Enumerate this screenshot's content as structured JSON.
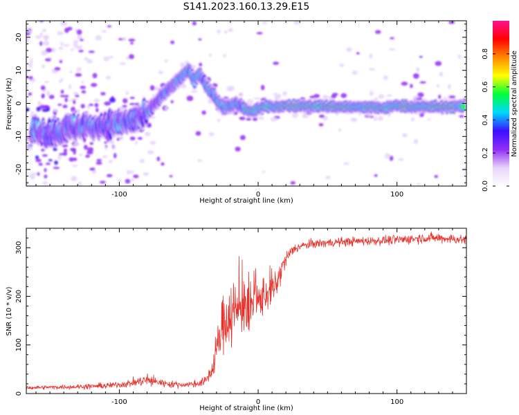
{
  "title": "S141.2023.160.13.29.E15",
  "chart_data": [
    {
      "type": "heatmap",
      "xlabel": "Height of straight line (km)",
      "ylabel": "Frequency (Hz)",
      "xlim": [
        -167,
        150
      ],
      "ylim": [
        -25,
        25
      ],
      "xticks": [
        -100,
        0,
        100
      ],
      "yticks": [
        -20,
        -10,
        0,
        10,
        20
      ],
      "grid": false,
      "ridge": {
        "x": [
          -163,
          -150,
          -140,
          -130,
          -120,
          -110,
          -100,
          -90,
          -82,
          -76,
          -70,
          -65,
          -60,
          -55,
          -50,
          -46,
          -42,
          -38,
          -35,
          -31,
          -28,
          -24,
          -20,
          -16,
          -12,
          -8,
          -4,
          0,
          4,
          8,
          12,
          20,
          40,
          60,
          80,
          88,
          92,
          96,
          100,
          110,
          130,
          148
        ],
        "y": [
          -8,
          -9,
          -8,
          -7,
          -7,
          -6.5,
          -6,
          -5,
          -4,
          -1,
          2,
          4,
          6,
          8,
          10,
          7,
          9,
          6,
          4,
          2,
          0,
          -1,
          -1,
          0,
          -1,
          -2,
          -2.5,
          -1.5,
          -1,
          -1,
          -1,
          -0.7,
          -0.8,
          -1,
          -1.2,
          -1.3,
          -1.5,
          -1,
          -0.5,
          -1,
          -1,
          -1
        ]
      },
      "colorbar": {
        "label": "Normalized spectral amplitude",
        "range": [
          0,
          1
        ],
        "ticks": [
          "0.0",
          "0.2",
          "0.4",
          "0.6",
          "0.8"
        ],
        "colors": [
          "#ffffff",
          "#e8d4fb",
          "#8f2ef5",
          "#3c10ff",
          "#00d8ff",
          "#00ff3a",
          "#ffff00",
          "#ff8a00",
          "#ff0000",
          "#ff1090"
        ]
      }
    },
    {
      "type": "line",
      "xlabel": "Height of straight line (km)",
      "ylabel": "SNR (10 * v/v)",
      "xlim": [
        -167,
        150
      ],
      "ylim": [
        0,
        340
      ],
      "xticks": [
        -100,
        0,
        100
      ],
      "yticks": [
        0,
        100,
        200,
        300
      ],
      "grid": false,
      "series": [
        {
          "color": "#e8302a",
          "x": [
            -167,
            -150,
            -130,
            -110,
            -95,
            -85,
            -80,
            -75,
            -65,
            -55,
            -45,
            -38,
            -33,
            -28,
            -25,
            -22,
            -19,
            -15,
            -12,
            -9,
            -7,
            -5,
            -3,
            0,
            3,
            6,
            10,
            14,
            18,
            22,
            26,
            30,
            35,
            40,
            50,
            60,
            70,
            80,
            90,
            100,
            110,
            120,
            130,
            140,
            150
          ],
          "y": [
            12,
            13,
            14,
            16,
            20,
            25,
            28,
            25,
            20,
            18,
            20,
            25,
            50,
            110,
            150,
            160,
            170,
            165,
            185,
            190,
            150,
            175,
            195,
            185,
            200,
            205,
            210,
            230,
            265,
            285,
            298,
            302,
            306,
            308,
            310,
            312,
            313,
            314,
            315,
            316,
            318,
            320,
            320,
            318,
            316
          ],
          "noise": [
            4,
            4,
            5,
            6,
            7,
            10,
            14,
            10,
            7,
            6,
            7,
            10,
            20,
            45,
            60,
            70,
            80,
            70,
            60,
            70,
            60,
            55,
            50,
            45,
            40,
            40,
            35,
            30,
            20,
            14,
            10,
            9,
            9,
            9,
            9,
            9,
            9,
            9,
            9,
            10,
            10,
            10,
            10,
            10,
            10
          ]
        }
      ]
    }
  ]
}
